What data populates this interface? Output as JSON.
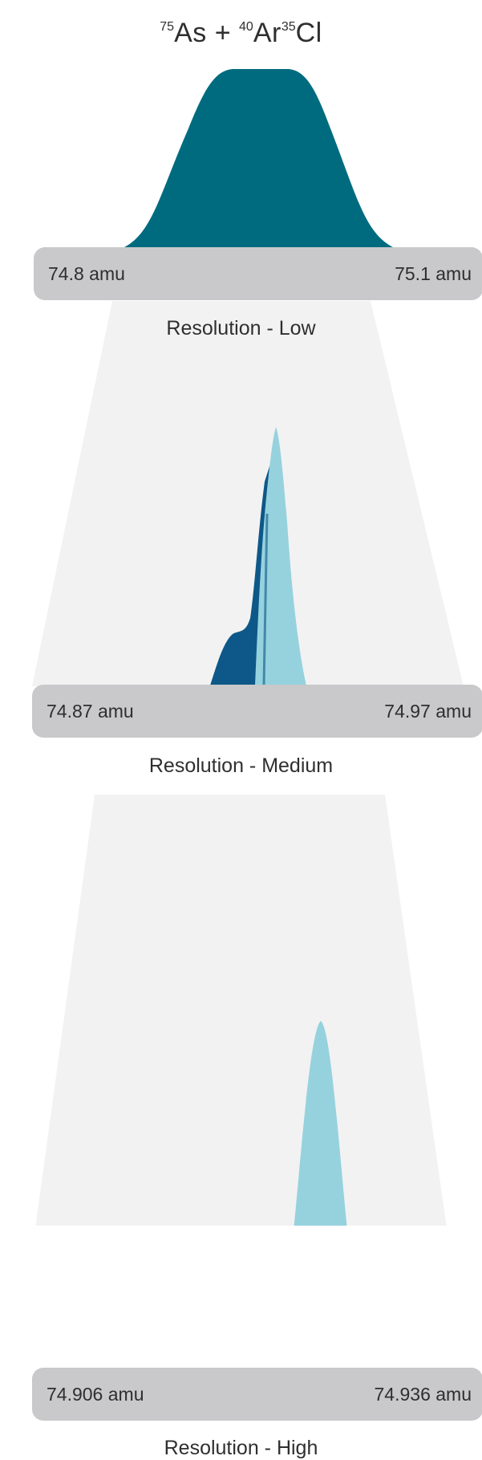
{
  "title": {
    "as_mass": "75",
    "as_symbol": "As",
    "plus": " + ",
    "ar_mass": "40",
    "ar_symbol": "Ar",
    "cl_mass": "35",
    "cl_symbol": "Cl"
  },
  "colors": {
    "low_peak": "#006b7f",
    "as_peak": "#0d5888",
    "arcl_peak": "#96d2de",
    "axis_bar": "#c9c9cb",
    "funnel": "#f2f2f2",
    "text": "#2e2e2e"
  },
  "panels": [
    {
      "name": "low",
      "label": "Resolution - Low",
      "axis_min": "74.8 amu",
      "axis_max": "75.1 amu"
    },
    {
      "name": "medium",
      "label": "Resolution - Medium",
      "axis_min": "74.87 amu",
      "axis_max": "74.97 amu"
    },
    {
      "name": "high",
      "label": "Resolution - High",
      "axis_min": "74.906 amu",
      "axis_max": "74.936 amu"
    }
  ]
}
